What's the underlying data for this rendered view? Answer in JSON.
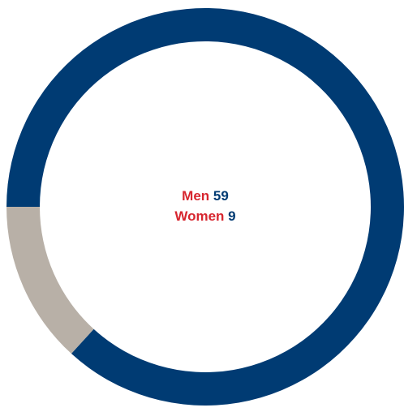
{
  "chart_data": {
    "type": "donut",
    "categories": [
      "Men",
      "Women"
    ],
    "values": [
      59,
      9
    ],
    "colors": [
      "#003b73",
      "#b8b0a7"
    ],
    "label_color": "#d7262f"
  }
}
